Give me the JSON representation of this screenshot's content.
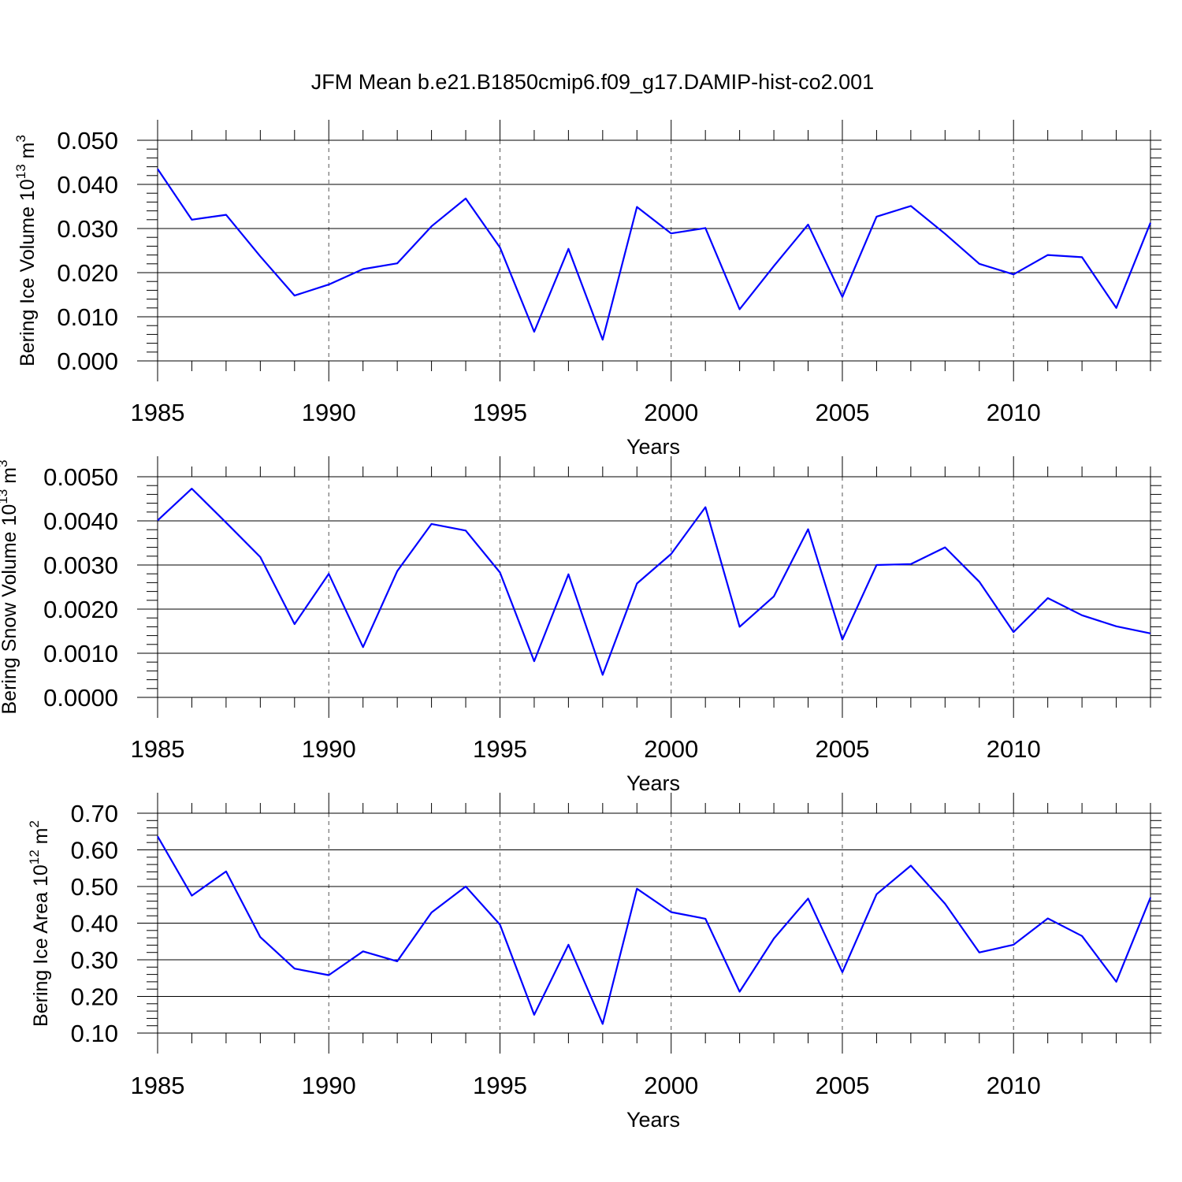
{
  "title": "JFM Mean b.e21.B1850cmip6.f09_g17.DAMIP-hist-co2.001",
  "colors": {
    "line": "#0000ff",
    "axis": "#000000",
    "grid": "#555555"
  },
  "chart_data": [
    {
      "type": "line",
      "ylabel_main": "Bering Ice Volume 10",
      "ylabel_exp": "13",
      "ylabel_unit": "m",
      "ylabel_unit_exp": "3",
      "xlabel": "Years",
      "xlim": [
        1985,
        2014
      ],
      "ylim": [
        0.0,
        0.05
      ],
      "yticks": [
        "0.000",
        "0.010",
        "0.020",
        "0.030",
        "0.040",
        "0.050"
      ],
      "xticks": [
        "1985",
        "1990",
        "1995",
        "2000",
        "2005",
        "2010"
      ],
      "x": [
        1985,
        1986,
        1987,
        1988,
        1989,
        1990,
        1991,
        1992,
        1993,
        1994,
        1995,
        1996,
        1997,
        1998,
        1999,
        2000,
        2001,
        2002,
        2003,
        2004,
        2005,
        2006,
        2007,
        2008,
        2009,
        2010,
        2011,
        2012,
        2013,
        2014
      ],
      "values": [
        0.0435,
        0.032,
        0.0331,
        0.0237,
        0.0148,
        0.0173,
        0.0208,
        0.0221,
        0.0305,
        0.0368,
        0.0257,
        0.0066,
        0.0254,
        0.0048,
        0.0349,
        0.0289,
        0.0301,
        0.0117,
        0.0215,
        0.0309,
        0.0145,
        0.0327,
        0.0351,
        0.0288,
        0.022,
        0.0196,
        0.024,
        0.0235,
        0.012,
        0.0313
      ]
    },
    {
      "type": "line",
      "ylabel_main": "Bering Snow Volume 10",
      "ylabel_exp": "13",
      "ylabel_unit": "m",
      "ylabel_unit_exp": "3",
      "xlabel": "Years",
      "xlim": [
        1985,
        2014
      ],
      "ylim": [
        0.0,
        0.005
      ],
      "yticks": [
        "0.0000",
        "0.0010",
        "0.0020",
        "0.0030",
        "0.0040",
        "0.0050"
      ],
      "xticks": [
        "1985",
        "1990",
        "1995",
        "2000",
        "2005",
        "2010"
      ],
      "x": [
        1985,
        1986,
        1987,
        1988,
        1989,
        1990,
        1991,
        1992,
        1993,
        1994,
        1995,
        1996,
        1997,
        1998,
        1999,
        2000,
        2001,
        2002,
        2003,
        2004,
        2005,
        2006,
        2007,
        2008,
        2009,
        2010,
        2011,
        2012,
        2013,
        2014
      ],
      "values": [
        0.00401,
        0.00473,
        0.00396,
        0.00318,
        0.00166,
        0.0028,
        0.00114,
        0.00286,
        0.00393,
        0.00378,
        0.00283,
        0.00082,
        0.00279,
        0.00051,
        0.00258,
        0.00325,
        0.00431,
        0.0016,
        0.00229,
        0.00381,
        0.00131,
        0.003,
        0.00302,
        0.0034,
        0.00262,
        0.00148,
        0.00225,
        0.00186,
        0.00161,
        0.00145
      ]
    },
    {
      "type": "line",
      "ylabel_main": "Bering Ice Area 10",
      "ylabel_exp": "12",
      "ylabel_unit": "m",
      "ylabel_unit_exp": "2",
      "xlabel": "Years",
      "xlim": [
        1985,
        2014
      ],
      "ylim": [
        0.1,
        0.7
      ],
      "yticks": [
        "0.10",
        "0.20",
        "0.30",
        "0.40",
        "0.50",
        "0.60",
        "0.70"
      ],
      "xticks": [
        "1985",
        "1990",
        "1995",
        "2000",
        "2005",
        "2010"
      ],
      "x": [
        1985,
        1986,
        1987,
        1988,
        1989,
        1990,
        1991,
        1992,
        1993,
        1994,
        1995,
        1996,
        1997,
        1998,
        1999,
        2000,
        2001,
        2002,
        2003,
        2004,
        2005,
        2006,
        2007,
        2008,
        2009,
        2010,
        2011,
        2012,
        2013,
        2014
      ],
      "values": [
        0.637,
        0.475,
        0.541,
        0.362,
        0.276,
        0.258,
        0.323,
        0.296,
        0.429,
        0.5,
        0.396,
        0.15,
        0.341,
        0.125,
        0.494,
        0.43,
        0.412,
        0.213,
        0.358,
        0.467,
        0.266,
        0.479,
        0.557,
        0.453,
        0.32,
        0.341,
        0.413,
        0.365,
        0.24,
        0.47
      ]
    }
  ]
}
